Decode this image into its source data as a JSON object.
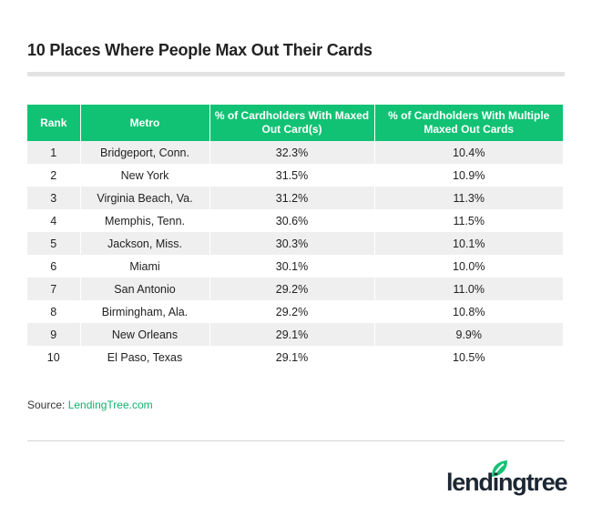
{
  "title": "10 Places Where People Max Out Their Cards",
  "table": {
    "headers": [
      "Rank",
      "Metro",
      "% of Cardholders With Maxed Out Card(s)",
      "% of Cardholders With Multiple Maxed Out Cards"
    ],
    "rows": [
      [
        "1",
        "Bridgeport, Conn.",
        "32.3%",
        "10.4%"
      ],
      [
        "2",
        "New York",
        "31.5%",
        "10.9%"
      ],
      [
        "3",
        "Virginia Beach, Va.",
        "31.2%",
        "11.3%"
      ],
      [
        "4",
        "Memphis, Tenn.",
        "30.6%",
        "11.5%"
      ],
      [
        "5",
        "Jackson, Miss.",
        "30.3%",
        "10.1%"
      ],
      [
        "6",
        "Miami",
        "30.1%",
        "10.0%"
      ],
      [
        "7",
        "San Antonio",
        "29.2%",
        "11.0%"
      ],
      [
        "8",
        "Birmingham, Ala.",
        "29.2%",
        "10.8%"
      ],
      [
        "9",
        "New Orleans",
        "29.1%",
        "9.9%"
      ],
      [
        "10",
        "El Paso, Texas",
        "29.1%",
        "10.5%"
      ]
    ]
  },
  "source": {
    "label": "Source: ",
    "link": "LendingTree.com"
  },
  "logo": {
    "text": "lendingtree"
  },
  "colors": {
    "accent": "#12c274",
    "row_alt": "#efefef"
  }
}
